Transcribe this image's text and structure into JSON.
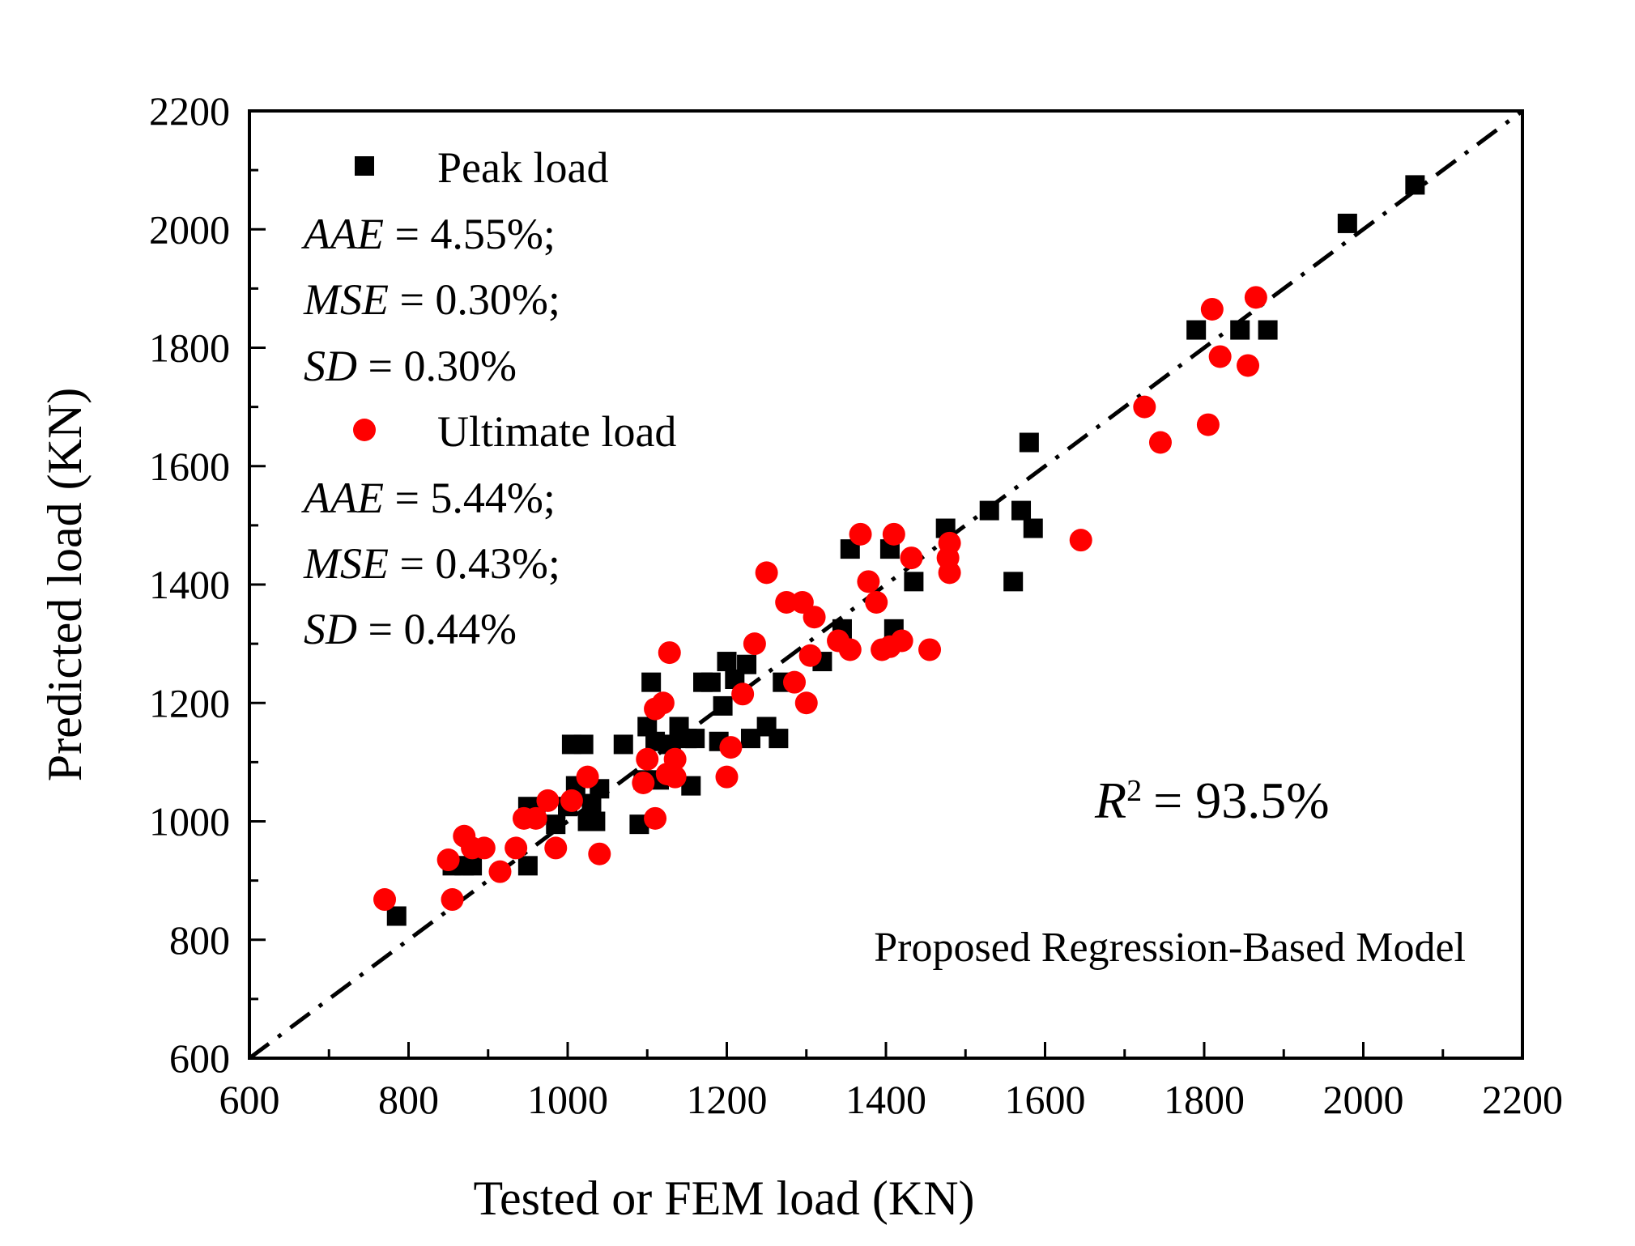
{
  "chart_data": {
    "type": "scatter",
    "xlabel": "Tested or FEM load (KN)",
    "ylabel": "Predicted load (KN)",
    "xlim": [
      600,
      2200
    ],
    "ylim": [
      600,
      2200
    ],
    "x_ticks": [
      "600",
      "800",
      "1000",
      "1200",
      "1400",
      "1600",
      "1800",
      "2000",
      "2200"
    ],
    "y_ticks": [
      "600",
      "800",
      "1000",
      "1200",
      "1400",
      "1600",
      "1800",
      "2000",
      "2200"
    ],
    "reference_line": "y = x",
    "annotation": "Proposed Regression-Based Model",
    "r_squared": {
      "symbol": "R",
      "exponent": "2",
      "value": "= 93.5%"
    },
    "series": [
      {
        "name": "Peak load",
        "marker": "square",
        "color": "#000000",
        "stats": [
          {
            "label": "AAE",
            "value": " = 4.55%;"
          },
          {
            "label": "MSE",
            "value": " = 0.30%;"
          },
          {
            "label": "SD",
            "value": " = 0.30%"
          }
        ],
        "points": [
          [
            785,
            840
          ],
          [
            855,
            925
          ],
          [
            870,
            925
          ],
          [
            880,
            925
          ],
          [
            950,
            925
          ],
          [
            950,
            1025
          ],
          [
            960,
            1010
          ],
          [
            985,
            995
          ],
          [
            1000,
            1025
          ],
          [
            1005,
            1130
          ],
          [
            1010,
            1060
          ],
          [
            1020,
            1130
          ],
          [
            1025,
            1000
          ],
          [
            1030,
            1030
          ],
          [
            1035,
            1000
          ],
          [
            1040,
            1055
          ],
          [
            1070,
            1130
          ],
          [
            1090,
            995
          ],
          [
            1095,
            1070
          ],
          [
            1100,
            1160
          ],
          [
            1105,
            1235
          ],
          [
            1110,
            1135
          ],
          [
            1115,
            1070
          ],
          [
            1130,
            1130
          ],
          [
            1140,
            1160
          ],
          [
            1150,
            1140
          ],
          [
            1155,
            1060
          ],
          [
            1160,
            1140
          ],
          [
            1170,
            1235
          ],
          [
            1180,
            1235
          ],
          [
            1190,
            1135
          ],
          [
            1195,
            1195
          ],
          [
            1200,
            1270
          ],
          [
            1210,
            1240
          ],
          [
            1225,
            1265
          ],
          [
            1230,
            1140
          ],
          [
            1250,
            1160
          ],
          [
            1265,
            1140
          ],
          [
            1270,
            1235
          ],
          [
            1320,
            1270
          ],
          [
            1345,
            1325
          ],
          [
            1355,
            1460
          ],
          [
            1405,
            1460
          ],
          [
            1410,
            1325
          ],
          [
            1435,
            1405
          ],
          [
            1475,
            1495
          ],
          [
            1530,
            1525
          ],
          [
            1560,
            1405
          ],
          [
            1570,
            1525
          ],
          [
            1580,
            1640
          ],
          [
            1585,
            1495
          ],
          [
            1790,
            1830
          ],
          [
            1845,
            1830
          ],
          [
            1880,
            1830
          ],
          [
            1980,
            2010
          ],
          [
            2065,
            2075
          ]
        ]
      },
      {
        "name": "Ultimate load",
        "marker": "circle",
        "color": "#ff0000",
        "stats": [
          {
            "label": "AAE",
            "value": " = 5.44%;"
          },
          {
            "label": "MSE",
            "value": " = 0.43%;"
          },
          {
            "label": "SD",
            "value": " = 0.44%"
          }
        ],
        "points": [
          [
            770,
            868
          ],
          [
            850,
            935
          ],
          [
            855,
            868
          ],
          [
            870,
            975
          ],
          [
            880,
            955
          ],
          [
            895,
            955
          ],
          [
            915,
            915
          ],
          [
            935,
            955
          ],
          [
            945,
            1005
          ],
          [
            960,
            1005
          ],
          [
            975,
            1035
          ],
          [
            985,
            955
          ],
          [
            1005,
            1035
          ],
          [
            1025,
            1075
          ],
          [
            1040,
            945
          ],
          [
            1095,
            1065
          ],
          [
            1100,
            1105
          ],
          [
            1110,
            1005
          ],
          [
            1110,
            1190
          ],
          [
            1120,
            1200
          ],
          [
            1125,
            1080
          ],
          [
            1128,
            1285
          ],
          [
            1135,
            1105
          ],
          [
            1135,
            1075
          ],
          [
            1200,
            1075
          ],
          [
            1205,
            1125
          ],
          [
            1220,
            1215
          ],
          [
            1235,
            1300
          ],
          [
            1250,
            1420
          ],
          [
            1275,
            1370
          ],
          [
            1285,
            1235
          ],
          [
            1295,
            1370
          ],
          [
            1300,
            1200
          ],
          [
            1305,
            1280
          ],
          [
            1310,
            1345
          ],
          [
            1340,
            1305
          ],
          [
            1355,
            1290
          ],
          [
            1368,
            1485
          ],
          [
            1378,
            1405
          ],
          [
            1388,
            1370
          ],
          [
            1395,
            1290
          ],
          [
            1405,
            1295
          ],
          [
            1410,
            1485
          ],
          [
            1420,
            1305
          ],
          [
            1432,
            1445
          ],
          [
            1455,
            1290
          ],
          [
            1478,
            1445
          ],
          [
            1480,
            1470
          ],
          [
            1480,
            1420
          ],
          [
            1645,
            1475
          ],
          [
            1725,
            1700
          ],
          [
            1745,
            1640
          ],
          [
            1805,
            1670
          ],
          [
            1810,
            1865
          ],
          [
            1820,
            1785
          ],
          [
            1855,
            1770
          ],
          [
            1865,
            1885
          ]
        ]
      }
    ]
  }
}
